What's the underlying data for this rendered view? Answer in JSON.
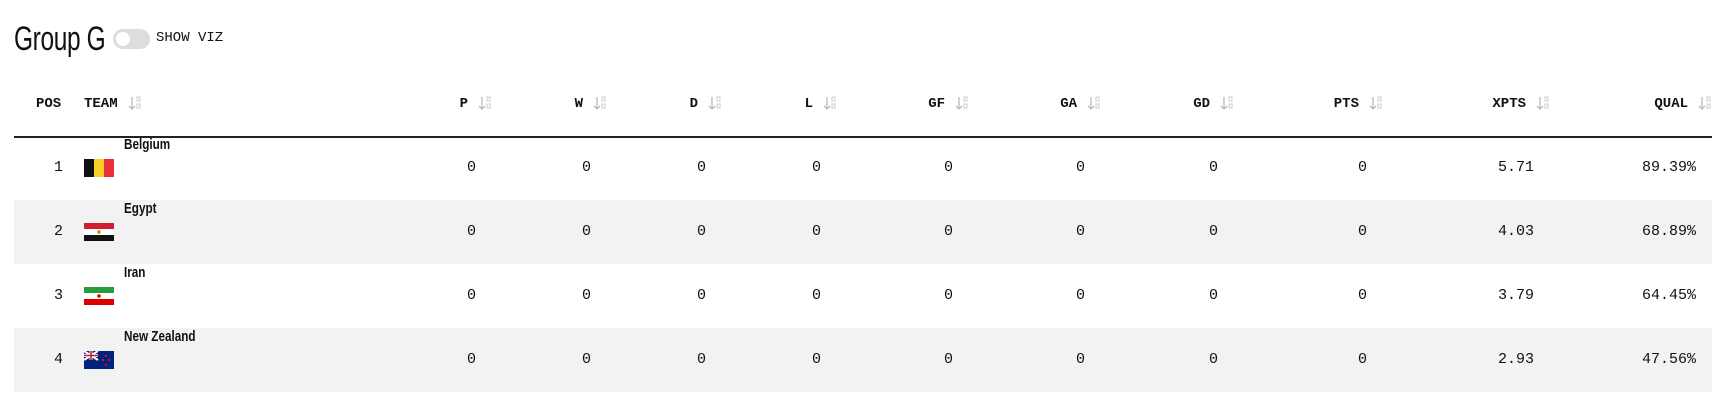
{
  "header": {
    "title": "Group G",
    "toggle_label": "SHOW VIZ"
  },
  "table": {
    "columns": [
      "POS",
      "TEAM",
      "P",
      "W",
      "D",
      "L",
      "GF",
      "GA",
      "GD",
      "PTS",
      "XPTS",
      "QUAL"
    ],
    "rows": [
      [
        "1",
        "Belgium",
        "0",
        "0",
        "0",
        "0",
        "0",
        "0",
        "0",
        "0",
        "5.71",
        "89.39%"
      ],
      [
        "2",
        "Egypt",
        "0",
        "0",
        "0",
        "0",
        "0",
        "0",
        "0",
        "0",
        "4.03",
        "68.89%"
      ],
      [
        "3",
        "Iran",
        "0",
        "0",
        "0",
        "0",
        "0",
        "0",
        "0",
        "0",
        "3.79",
        "64.45%"
      ],
      [
        "4",
        "New Zealand",
        "0",
        "0",
        "0",
        "0",
        "0",
        "0",
        "0",
        "0",
        "2.93",
        "47.56%"
      ]
    ]
  }
}
